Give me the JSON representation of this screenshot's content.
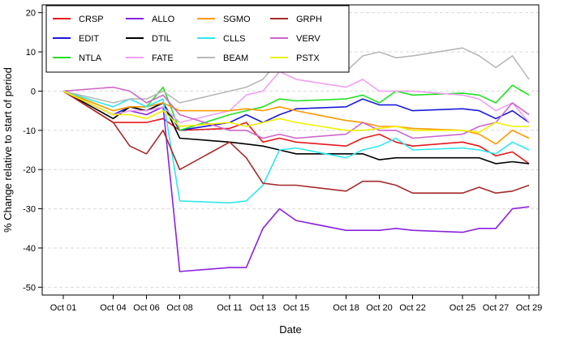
{
  "chart_data": {
    "type": "line",
    "title": "",
    "xlabel": "Date",
    "ylabel": "% Change relative to start of period",
    "x_tick_labels": [
      "Oct 01",
      "Oct 04",
      "Oct 06",
      "Oct 08",
      "Oct 11",
      "Oct 13",
      "Oct 15",
      "Oct 18",
      "Oct 20",
      "Oct 22",
      "Oct 25",
      "Oct 27",
      "Oct 29"
    ],
    "x_tick_days": [
      1,
      4,
      6,
      8,
      11,
      13,
      15,
      18,
      20,
      22,
      25,
      27,
      29
    ],
    "xlim": [
      1,
      29
    ],
    "ylim": [
      -52,
      22
    ],
    "y_ticks": [
      20,
      10,
      0,
      -10,
      -20,
      -30,
      -40,
      -50
    ],
    "grid": "horizontal dashed",
    "legend_position": "top-left",
    "x_days": [
      1,
      4,
      5,
      6,
      7,
      8,
      11,
      12,
      13,
      14,
      15,
      18,
      19,
      20,
      21,
      22,
      25,
      26,
      27,
      28,
      29
    ],
    "series": [
      {
        "name": "CRSP",
        "color": "#e41a1c",
        "values": [
          0,
          -8,
          -8,
          -8,
          -7,
          -10,
          -9.5,
          -8,
          -13,
          -12,
          -13,
          -14,
          -12,
          -11,
          -13,
          -14,
          -13,
          -14,
          -16.5,
          -15.5,
          -18.5
        ]
      },
      {
        "name": "EDIT",
        "color": "#1a1adb",
        "values": [
          0,
          -6,
          -4,
          -5,
          -3,
          -10,
          -8,
          -6,
          -8,
          -6,
          -4.5,
          -4,
          -2,
          -3.5,
          -3.5,
          -5,
          -4.5,
          -5,
          -7,
          -5,
          -8
        ]
      },
      {
        "name": "NTLA",
        "color": "#22e022",
        "values": [
          0,
          -5,
          -4,
          -4,
          1,
          -10,
          -6,
          -5,
          -4,
          -2,
          -2.5,
          -2,
          -1,
          -3,
          0,
          -1,
          -0.5,
          -1,
          -3,
          1.5,
          -1
        ]
      },
      {
        "name": "ALLO",
        "color": "#8b22e0",
        "values": [
          0,
          -6,
          -5,
          -6,
          -4,
          -46,
          -45,
          -45,
          -35,
          -30,
          -33,
          -35.5,
          -35.5,
          -35.5,
          -35,
          -35.5,
          -36,
          -35,
          -35,
          -30,
          -29.5
        ]
      },
      {
        "name": "DTIL",
        "color": "#000000",
        "values": [
          0,
          -7,
          -4,
          -5,
          -3,
          -12,
          -13,
          -13.5,
          -14,
          -15,
          -16,
          -16,
          -16,
          -17.5,
          -17,
          -17,
          -17,
          -17,
          -18.5,
          -18,
          -18.5
        ]
      },
      {
        "name": "FATE",
        "color": "#f0a0f0",
        "values": [
          0,
          -6,
          -5,
          -5,
          -4,
          -8,
          -5,
          -1,
          0,
          5,
          3,
          1,
          3,
          0,
          0,
          0,
          -1,
          -2,
          -5,
          -3,
          -8
        ]
      },
      {
        "name": "SGMO",
        "color": "#ff9900",
        "values": [
          0,
          -5,
          -4,
          -4,
          -3,
          -5,
          -5,
          -4.5,
          -5,
          -4,
          -5,
          -7.5,
          -8,
          -9,
          -9,
          -9.5,
          -10,
          -11,
          -13.5,
          -10,
          -12
        ]
      },
      {
        "name": "CLLS",
        "color": "#30e8f0",
        "values": [
          0,
          -4,
          -2,
          -4,
          -2,
          -28,
          -28.5,
          -28,
          -24,
          -15,
          -14.5,
          -17,
          -15,
          -14,
          -12,
          -15,
          -14.5,
          -15,
          -16,
          -13,
          -15
        ]
      },
      {
        "name": "BEAM",
        "color": "#b8b8b8",
        "values": [
          0,
          -3,
          -2,
          -2,
          0,
          -3,
          0,
          1,
          3,
          8,
          7,
          5,
          9,
          10,
          8.5,
          9,
          11,
          9,
          6,
          9,
          3
        ]
      },
      {
        "name": "GRPH",
        "color": "#a52a2a",
        "values": [
          0,
          -8,
          -14,
          -16,
          -10,
          -20,
          -13,
          -17,
          -23.5,
          -24,
          -24,
          -25.5,
          -23,
          -23,
          -24,
          -26,
          -26,
          -24.5,
          -26,
          -25.5,
          -24
        ]
      },
      {
        "name": "VERV",
        "color": "#cc66cc",
        "values": [
          0,
          1,
          0,
          -3,
          -1,
          -6,
          -10,
          -10,
          -12,
          -11,
          -12,
          -11,
          -8,
          -10,
          -10,
          -12,
          -11,
          -9,
          -8,
          -3,
          -6
        ]
      },
      {
        "name": "PSTX",
        "color": "#f0f000",
        "values": [
          0,
          -6,
          -6,
          -7,
          -5,
          -9,
          -8,
          -9,
          -8,
          -7,
          -8,
          -10,
          -10,
          -9.5,
          -9,
          -10,
          -10,
          -10.5,
          -8,
          -9,
          -9
        ]
      }
    ]
  }
}
